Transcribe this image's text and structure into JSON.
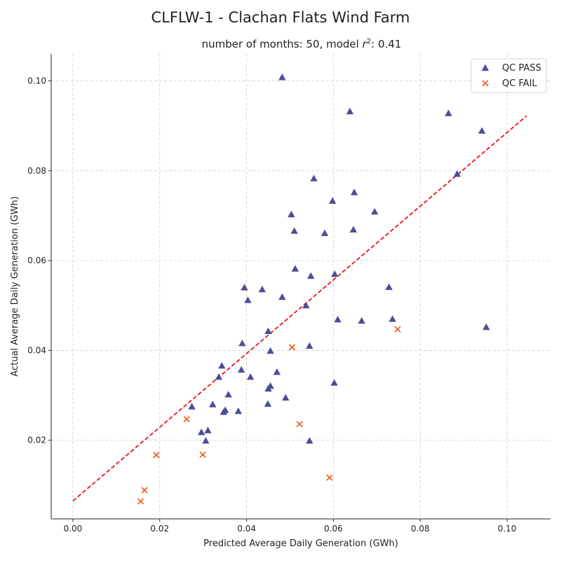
{
  "chart_data": {
    "type": "scatter",
    "title": "CLFLW-1 - Clachan Flats Wind Farm",
    "subtitle_prefix": "number of months: 50, model ",
    "subtitle_r": "r",
    "subtitle_exp": "2",
    "subtitle_suffix": ": 0.41",
    "xlabel": "Predicted Average Daily Generation (GWh)",
    "ylabel": "Actual Average Daily Generation (GWh)",
    "xlim": [
      -0.005,
      0.11
    ],
    "ylim": [
      0.0025,
      0.106
    ],
    "xticks": [
      0.0,
      0.02,
      0.04,
      0.06,
      0.08,
      0.1
    ],
    "xtick_labels": [
      "0.00",
      "0.02",
      "0.04",
      "0.06",
      "0.08",
      "0.10"
    ],
    "yticks": [
      0.02,
      0.04,
      0.06,
      0.08,
      0.1
    ],
    "ytick_labels": [
      "0.02",
      "0.04",
      "0.06",
      "0.08",
      "0.10"
    ],
    "grid": true,
    "legend_position": "top-right",
    "series": [
      {
        "name": "QC PASS",
        "marker": "triangle",
        "color": "#4b4e96",
        "points": [
          [
            0.0482,
            0.1008
          ],
          [
            0.0638,
            0.0932
          ],
          [
            0.0865,
            0.0928
          ],
          [
            0.0942,
            0.0889
          ],
          [
            0.0885,
            0.0793
          ],
          [
            0.0555,
            0.0783
          ],
          [
            0.0648,
            0.0752
          ],
          [
            0.0598,
            0.0733
          ],
          [
            0.0695,
            0.0709
          ],
          [
            0.0503,
            0.0703
          ],
          [
            0.051,
            0.0666
          ],
          [
            0.058,
            0.0661
          ],
          [
            0.0646,
            0.0669
          ],
          [
            0.0512,
            0.0582
          ],
          [
            0.0548,
            0.0566
          ],
          [
            0.0603,
            0.057
          ],
          [
            0.0395,
            0.054
          ],
          [
            0.0436,
            0.0536
          ],
          [
            0.0728,
            0.0541
          ],
          [
            0.0482,
            0.0519
          ],
          [
            0.0403,
            0.0512
          ],
          [
            0.0537,
            0.05
          ],
          [
            0.061,
            0.0469
          ],
          [
            0.0665,
            0.0466
          ],
          [
            0.0736,
            0.047
          ],
          [
            0.0952,
            0.0452
          ],
          [
            0.045,
            0.0443
          ],
          [
            0.039,
            0.0416
          ],
          [
            0.0545,
            0.041
          ],
          [
            0.0455,
            0.0399
          ],
          [
            0.0343,
            0.0366
          ],
          [
            0.0388,
            0.0357
          ],
          [
            0.047,
            0.0352
          ],
          [
            0.0409,
            0.0341
          ],
          [
            0.0336,
            0.0341
          ],
          [
            0.0602,
            0.0328
          ],
          [
            0.0455,
            0.0321
          ],
          [
            0.045,
            0.0315
          ],
          [
            0.0358,
            0.0302
          ],
          [
            0.049,
            0.0295
          ],
          [
            0.0449,
            0.0281
          ],
          [
            0.0322,
            0.028
          ],
          [
            0.0274,
            0.0275
          ],
          [
            0.0351,
            0.0267
          ],
          [
            0.0347,
            0.0263
          ],
          [
            0.0381,
            0.0265
          ],
          [
            0.0311,
            0.0222
          ],
          [
            0.0296,
            0.0218
          ],
          [
            0.0306,
            0.0199
          ],
          [
            0.0545,
            0.0199
          ]
        ]
      },
      {
        "name": "QC FAIL",
        "marker": "x",
        "color": "#e8642c",
        "points": [
          [
            0.0748,
            0.0447
          ],
          [
            0.0505,
            0.0407
          ],
          [
            0.0262,
            0.0247
          ],
          [
            0.0522,
            0.0236
          ],
          [
            0.0192,
            0.0167
          ],
          [
            0.0299,
            0.0168
          ],
          [
            0.0591,
            0.0117
          ],
          [
            0.0165,
            0.0089
          ],
          [
            0.0156,
            0.0064
          ]
        ]
      }
    ],
    "fit_line": {
      "style": "dashed",
      "color": "#e8141c",
      "x": [
        0.0,
        0.1045
      ],
      "y": [
        0.0065,
        0.0922
      ]
    }
  }
}
